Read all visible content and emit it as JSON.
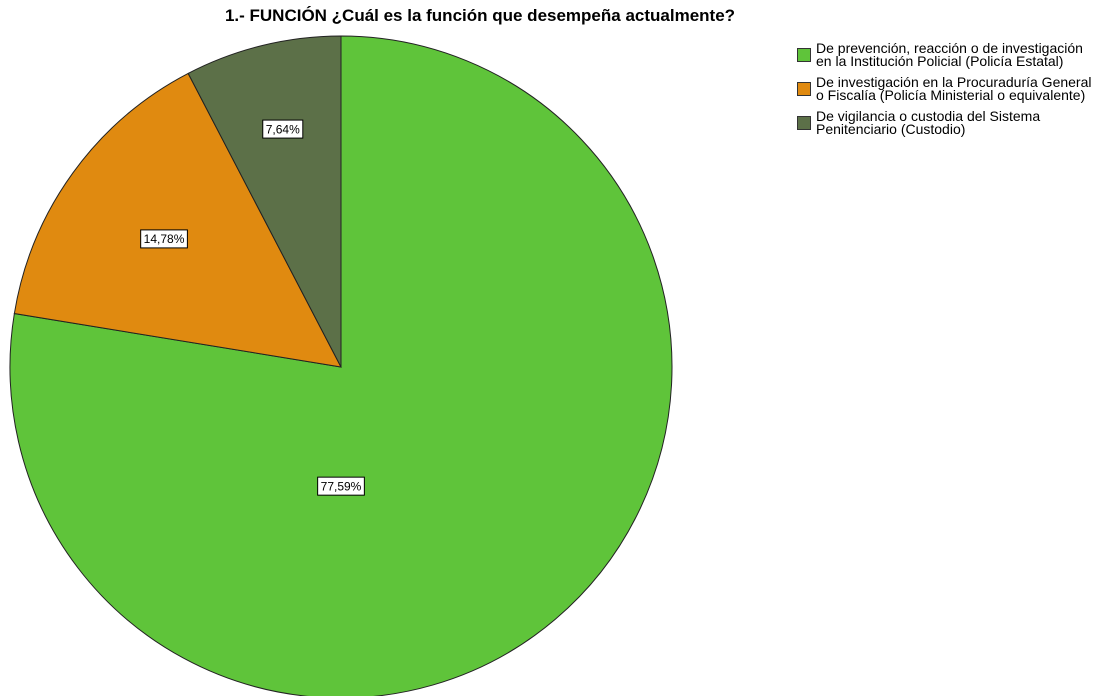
{
  "chart_data": {
    "type": "pie",
    "title": "1.- FUNCIÓN ¿Cuál es la función que desempeña actualmente?",
    "categories": [
      "De prevención, reacción o de investigación en la Institución Policial (Policía Estatal)",
      "De investigación en la Procuraduría General o Fiscalía (Policía Ministerial o equivalente)",
      "De vigilancia o custodia del Sistema Penitenciario (Custodio)"
    ],
    "values": [
      77.59,
      14.78,
      7.64
    ],
    "value_labels": [
      "77,59%",
      "14,78%",
      "7,64%"
    ],
    "colors": [
      "#5fc43a",
      "#e08a10",
      "#5c7048"
    ],
    "legend": "top-right"
  }
}
